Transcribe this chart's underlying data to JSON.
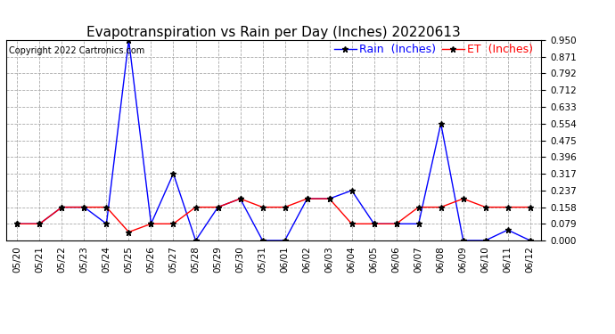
{
  "title": "Evapotranspiration vs Rain per Day (Inches) 20220613",
  "copyright": "Copyright 2022 Cartronics.com",
  "legend_rain": "Rain  (Inches)",
  "legend_et": "ET  (Inches)",
  "x_labels": [
    "05/20",
    "05/21",
    "05/22",
    "05/23",
    "05/24",
    "05/25",
    "05/26",
    "05/27",
    "05/28",
    "05/29",
    "05/30",
    "05/31",
    "06/01",
    "06/02",
    "06/03",
    "06/04",
    "06/05",
    "06/06",
    "06/07",
    "06/08",
    "06/09",
    "06/10",
    "06/11",
    "06/12"
  ],
  "rain_values": [
    0.079,
    0.079,
    0.158,
    0.158,
    0.079,
    0.95,
    0.079,
    0.317,
    0.0,
    0.158,
    0.198,
    0.0,
    0.0,
    0.198,
    0.198,
    0.237,
    0.079,
    0.079,
    0.079,
    0.554,
    0.0,
    0.0,
    0.05,
    0.0
  ],
  "et_values": [
    0.079,
    0.079,
    0.158,
    0.158,
    0.158,
    0.04,
    0.079,
    0.079,
    0.158,
    0.158,
    0.198,
    0.158,
    0.158,
    0.198,
    0.198,
    0.079,
    0.079,
    0.079,
    0.158,
    0.158,
    0.198,
    0.158,
    0.158,
    0.158
  ],
  "rain_color": "#0000ff",
  "et_color": "#ff0000",
  "background_color": "#ffffff",
  "grid_color": "#aaaaaa",
  "ylim_min": 0.0,
  "ylim_max": 0.95,
  "yticks": [
    0.0,
    0.079,
    0.158,
    0.237,
    0.317,
    0.396,
    0.475,
    0.554,
    0.633,
    0.712,
    0.792,
    0.871,
    0.95
  ],
  "title_fontsize": 11,
  "tick_fontsize": 7.5,
  "legend_fontsize": 9,
  "copyright_fontsize": 7,
  "figwidth": 6.9,
  "figheight": 3.75,
  "dpi": 100
}
